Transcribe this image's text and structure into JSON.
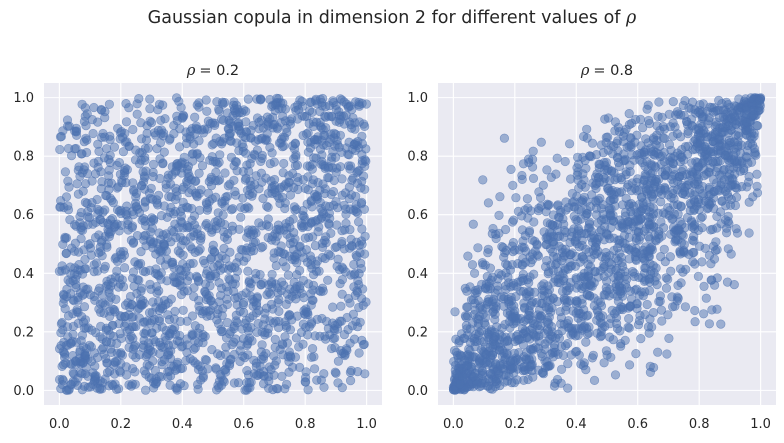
{
  "figure": {
    "suptitle_text": "Gaussian copula in dimension 2 for different values of ",
    "suptitle_symbol": "ρ"
  },
  "colors": {
    "background": "#ffffff",
    "axes_face": "#eaeaf2",
    "grid": "#ffffff",
    "marker": "#4c72b0",
    "text": "#262626"
  },
  "chart_data": [
    {
      "type": "scatter",
      "title_symbol": "ρ",
      "title_value": "= 0.2",
      "rho": 0.2,
      "n_points": 2000,
      "marker_alpha": 0.5,
      "xlabel": "",
      "ylabel": "",
      "xlim": [
        -0.05,
        1.05
      ],
      "ylim": [
        -0.05,
        1.05
      ],
      "xticks": [
        0.0,
        0.2,
        0.4,
        0.6,
        0.8,
        1.0
      ],
      "yticks": [
        0.0,
        0.2,
        0.4,
        0.6,
        0.8,
        1.0
      ],
      "xtick_labels": [
        "0.0",
        "0.2",
        "0.4",
        "0.6",
        "0.8",
        "1.0"
      ],
      "ytick_labels": [
        "0.0",
        "0.2",
        "0.4",
        "0.6",
        "0.8",
        "1.0"
      ],
      "grid": true,
      "legend": "none"
    },
    {
      "type": "scatter",
      "title_symbol": "ρ",
      "title_value": "= 0.8",
      "rho": 0.8,
      "n_points": 2000,
      "marker_alpha": 0.5,
      "xlabel": "",
      "ylabel": "",
      "xlim": [
        -0.05,
        1.05
      ],
      "ylim": [
        -0.05,
        1.05
      ],
      "xticks": [
        0.0,
        0.2,
        0.4,
        0.6,
        0.8,
        1.0
      ],
      "yticks": [
        0.0,
        0.2,
        0.4,
        0.6,
        0.8,
        1.0
      ],
      "xtick_labels": [
        "0.0",
        "0.2",
        "0.4",
        "0.6",
        "0.8",
        "1.0"
      ],
      "ytick_labels": [
        "0.0",
        "0.2",
        "0.4",
        "0.6",
        "0.8",
        "1.0"
      ],
      "grid": true,
      "legend": "none"
    }
  ]
}
